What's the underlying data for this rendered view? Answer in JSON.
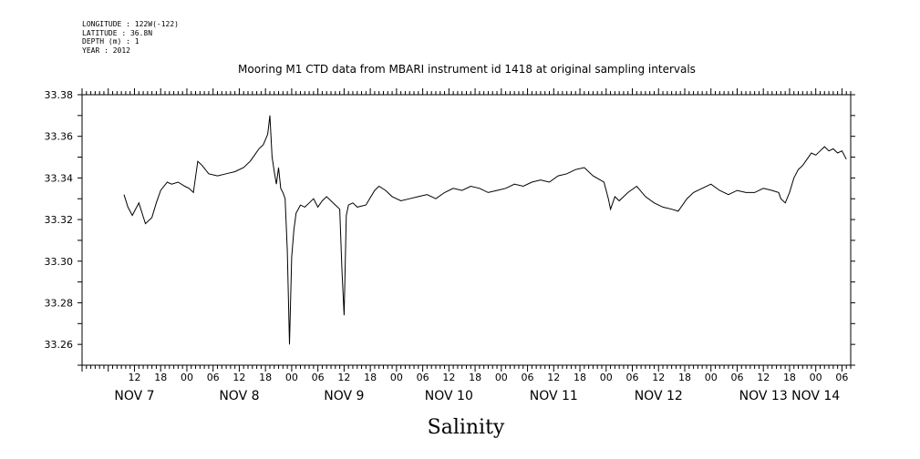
{
  "header": {
    "meta": [
      "LONGITUDE : 122W(-122)",
      "LATITUDE : 36.8N",
      "DEPTH (m) : 1",
      "YEAR : 2012"
    ]
  },
  "chart_data": {
    "type": "line",
    "title": "Mooring M1 CTD data from MBARI instrument id 1418 at original sampling intervals",
    "xlabel": "Salinity",
    "ylabel": "",
    "ylim": [
      33.25,
      33.38
    ],
    "yticks": [
      33.26,
      33.28,
      33.3,
      33.32,
      33.34,
      33.36,
      33.38
    ],
    "ytick_labels": [
      "33.26",
      "33.28",
      "33.30",
      "33.32",
      "33.34",
      "33.36",
      "33.38"
    ],
    "x_unit": "hours since Nov 7 00:00 (2012)",
    "xlim": [
      0,
      176
    ],
    "hour_tick_labels": [
      {
        "h": 12,
        "label": "12"
      },
      {
        "h": 18,
        "label": "18"
      },
      {
        "h": 24,
        "label": "00"
      },
      {
        "h": 30,
        "label": "06"
      },
      {
        "h": 36,
        "label": "12"
      },
      {
        "h": 42,
        "label": "18"
      },
      {
        "h": 48,
        "label": "00"
      },
      {
        "h": 54,
        "label": "06"
      },
      {
        "h": 60,
        "label": "12"
      },
      {
        "h": 66,
        "label": "18"
      },
      {
        "h": 72,
        "label": "00"
      },
      {
        "h": 78,
        "label": "06"
      },
      {
        "h": 84,
        "label": "12"
      },
      {
        "h": 90,
        "label": "18"
      },
      {
        "h": 96,
        "label": "00"
      },
      {
        "h": 102,
        "label": "06"
      },
      {
        "h": 108,
        "label": "12"
      },
      {
        "h": 114,
        "label": "18"
      },
      {
        "h": 120,
        "label": "00"
      },
      {
        "h": 126,
        "label": "06"
      },
      {
        "h": 132,
        "label": "12"
      },
      {
        "h": 138,
        "label": "18"
      },
      {
        "h": 144,
        "label": "00"
      },
      {
        "h": 150,
        "label": "06"
      },
      {
        "h": 156,
        "label": "12"
      },
      {
        "h": 162,
        "label": "18"
      },
      {
        "h": 168,
        "label": "00"
      },
      {
        "h": 174,
        "label": "06"
      }
    ],
    "day_labels": [
      {
        "h": 12,
        "label": "NOV  7"
      },
      {
        "h": 36,
        "label": "NOV  8"
      },
      {
        "h": 60,
        "label": "NOV  9"
      },
      {
        "h": 84,
        "label": "NOV 10"
      },
      {
        "h": 108,
        "label": "NOV 11"
      },
      {
        "h": 132,
        "label": "NOV 12"
      },
      {
        "h": 156,
        "label": "NOV 13"
      },
      {
        "h": 168,
        "label": "NOV 14"
      }
    ],
    "series": [
      {
        "x": [
          9.6,
          10.5,
          11.5,
          13,
          14.5,
          16,
          17,
          18,
          19.5,
          20.5,
          22,
          23.5,
          24.5,
          25.5,
          26.5,
          27.5,
          29,
          31,
          33,
          35,
          37,
          38.5,
          39.5,
          40.5,
          41.5,
          42.5,
          43,
          43.5,
          44,
          44.5,
          45,
          45.5,
          46,
          46.5,
          47,
          47.5,
          48,
          48.5,
          49,
          50,
          51,
          52,
          53,
          54,
          55,
          56,
          58,
          59,
          59.5,
          60,
          60.5,
          61,
          62,
          63,
          65,
          67,
          68,
          69.5,
          71,
          73,
          75,
          77,
          79,
          81,
          83,
          85,
          87,
          89,
          91,
          93,
          95,
          97,
          99,
          101,
          103,
          105,
          107,
          109,
          111,
          113,
          115,
          117,
          119.5,
          120.5,
          121,
          121.5,
          122,
          123,
          125,
          127,
          129,
          131,
          133,
          135,
          136.5,
          137.5,
          138.5,
          140,
          142,
          144,
          146,
          148,
          150,
          152,
          154,
          156,
          158,
          159.5,
          160,
          160.5,
          161,
          162,
          163,
          164,
          165,
          166,
          167,
          168,
          169,
          170,
          171,
          172,
          173,
          174,
          175
        ],
        "y": [
          33.332,
          33.326,
          33.322,
          33.328,
          33.318,
          33.321,
          33.328,
          33.334,
          33.338,
          33.337,
          33.338,
          33.336,
          33.335,
          33.333,
          33.348,
          33.346,
          33.342,
          33.341,
          33.342,
          33.343,
          33.345,
          33.348,
          33.351,
          33.354,
          33.356,
          33.361,
          33.37,
          33.35,
          33.343,
          33.337,
          33.345,
          33.335,
          33.333,
          33.33,
          33.305,
          33.26,
          33.302,
          33.315,
          33.323,
          33.327,
          33.326,
          33.328,
          33.33,
          33.326,
          33.329,
          33.331,
          33.327,
          33.325,
          33.296,
          33.274,
          33.322,
          33.327,
          33.328,
          33.326,
          33.327,
          33.334,
          33.336,
          33.334,
          33.331,
          33.329,
          33.33,
          33.331,
          33.332,
          33.33,
          33.333,
          33.335,
          33.334,
          33.336,
          33.335,
          33.333,
          33.334,
          33.335,
          33.337,
          33.336,
          33.338,
          33.339,
          33.338,
          33.341,
          33.342,
          33.344,
          33.345,
          33.341,
          33.338,
          33.33,
          33.325,
          33.328,
          33.331,
          33.329,
          33.333,
          33.336,
          33.331,
          33.328,
          33.326,
          33.325,
          33.324,
          33.327,
          33.33,
          33.333,
          33.335,
          33.337,
          33.334,
          33.332,
          33.334,
          33.333,
          33.333,
          33.335,
          33.334,
          33.333,
          33.33,
          33.329,
          33.328,
          33.333,
          33.34,
          33.344,
          33.346,
          33.349,
          33.352,
          33.351,
          33.353,
          33.355,
          33.353,
          33.354,
          33.352,
          33.353,
          33.349
        ]
      }
    ],
    "grid": false,
    "legend": "none"
  }
}
